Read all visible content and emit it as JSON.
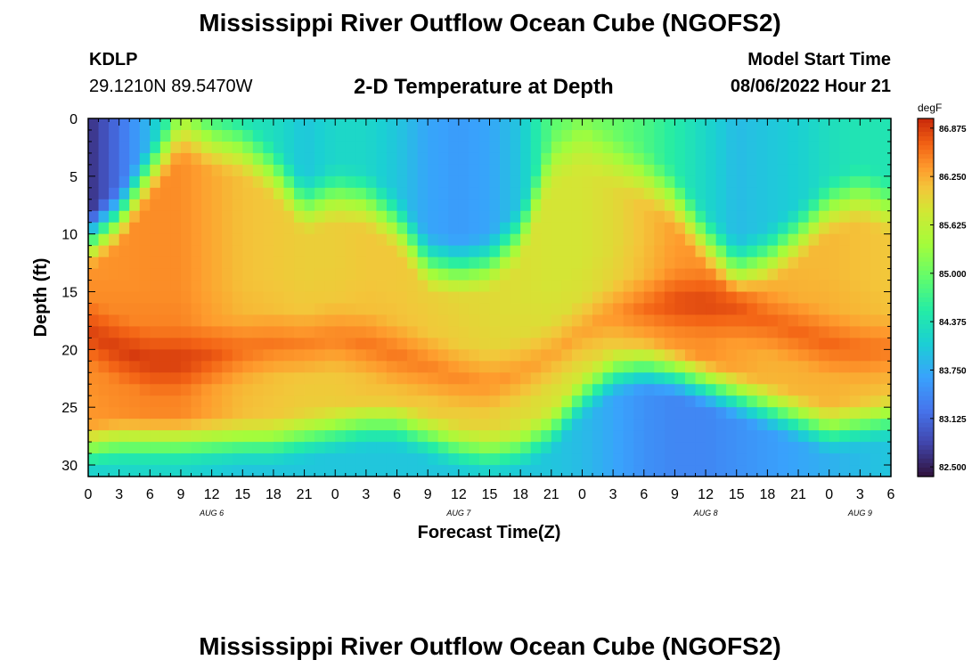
{
  "header": {
    "title": "Mississippi River Outflow Ocean Cube (NGOFS2)",
    "station_id": "KDLP",
    "coordinates": "29.1210N  89.5470W",
    "subtitle": "2-D Temperature at Depth",
    "model_start_label": "Model Start Time",
    "model_start_value": "08/06/2022 Hour 21"
  },
  "footer": {
    "title": "Mississippi River Outflow Ocean Cube (NGOFS2)"
  },
  "chart_data": {
    "type": "heatmap",
    "xlabel": "Forecast Time(Z)",
    "ylabel": "Depth (ft)",
    "x_hours_range": [
      0,
      78
    ],
    "x_tick_hours": [
      0,
      3,
      6,
      9,
      12,
      15,
      18,
      21,
      24,
      27,
      30,
      33,
      36,
      39,
      42,
      45,
      48,
      51,
      54,
      57,
      60,
      63,
      66,
      69,
      72,
      75,
      78
    ],
    "x_tick_labels": [
      "0",
      "3",
      "6",
      "9",
      "12",
      "15",
      "18",
      "21",
      "0",
      "3",
      "6",
      "9",
      "12",
      "15",
      "18",
      "21",
      "0",
      "3",
      "6",
      "9",
      "12",
      "15",
      "18",
      "21",
      "0",
      "3",
      "6"
    ],
    "date_labels": [
      {
        "hour": 12,
        "label": "AUG 6"
      },
      {
        "hour": 36,
        "label": "AUG 7"
      },
      {
        "hour": 60,
        "label": "AUG 8"
      },
      {
        "hour": 75,
        "label": "AUG 9"
      }
    ],
    "y_range_ft": [
      0,
      31
    ],
    "y_ticks": [
      0,
      5,
      10,
      15,
      20,
      25,
      30
    ],
    "colorbar": {
      "units": "degF",
      "min": 82.375,
      "max": 87.0,
      "tick_values": [
        86.875,
        86.25,
        85.625,
        85.0,
        84.375,
        83.75,
        83.125,
        82.5
      ],
      "tick_labels": [
        "86.875",
        "86.250",
        "85.625",
        "85.000",
        "84.375",
        "83.750",
        "83.125",
        "82.500"
      ]
    },
    "profile": {
      "hours": [
        0,
        3,
        6,
        9,
        12,
        15,
        18,
        21,
        24,
        27,
        30,
        33,
        36,
        39,
        42,
        45,
        48,
        51,
        54,
        57,
        60,
        63,
        66,
        69,
        72,
        75,
        78
      ],
      "mixed_layer_base_ft": [
        10.5,
        8.5,
        4.5,
        1.0,
        2.0,
        2.5,
        4.5,
        7.5,
        6.5,
        7.0,
        9.0,
        12.5,
        13.0,
        12.5,
        10.0,
        3.5,
        2.0,
        3.5,
        5.0,
        7.0,
        10.5,
        13.0,
        12.0,
        10.0,
        7.5,
        6.5,
        7.5
      ],
      "bottom_layer_top_ft": [
        28.5,
        28.0,
        28.0,
        28.0,
        28.0,
        28.0,
        28.0,
        27.5,
        27.0,
        26.5,
        26.5,
        27.5,
        28.5,
        29.0,
        28.5,
        27.0,
        24.0,
        22.0,
        21.5,
        22.0,
        23.0,
        24.0,
        25.0,
        26.0,
        27.0,
        26.5,
        26.0
      ],
      "core_depth_ft": [
        18.5,
        20.0,
        21.0,
        21.0,
        20.5,
        20.0,
        19.5,
        19.5,
        19.0,
        19.5,
        20.5,
        21.5,
        22.5,
        23.0,
        22.0,
        20.5,
        18.5,
        17.0,
        16.5,
        16.0,
        16.0,
        16.5,
        17.5,
        18.5,
        19.5,
        20.0,
        20.0
      ],
      "core_temp_degF": [
        86.85,
        86.88,
        86.9,
        86.9,
        86.75,
        86.6,
        86.55,
        86.5,
        86.5,
        86.55,
        86.55,
        86.5,
        86.45,
        86.4,
        86.35,
        86.3,
        86.3,
        86.4,
        86.6,
        86.8,
        86.85,
        86.75,
        86.65,
        86.65,
        86.65,
        86.6,
        86.55
      ],
      "surface_temp_degF": [
        82.6,
        83.2,
        83.9,
        85.1,
        84.6,
        84.4,
        84.3,
        84.0,
        84.2,
        84.2,
        84.0,
        83.7,
        83.6,
        83.7,
        84.0,
        84.9,
        85.1,
        85.0,
        84.8,
        84.5,
        84.2,
        83.9,
        84.0,
        84.1,
        84.3,
        84.4,
        84.4
      ],
      "bottom_temp_degF": [
        84.1,
        84.2,
        84.2,
        84.2,
        84.1,
        84.0,
        84.0,
        84.0,
        84.0,
        84.0,
        84.0,
        84.0,
        84.0,
        84.0,
        84.0,
        84.0,
        83.9,
        83.7,
        83.5,
        83.4,
        83.4,
        83.5,
        83.6,
        83.7,
        83.8,
        83.9,
        84.0
      ]
    }
  }
}
